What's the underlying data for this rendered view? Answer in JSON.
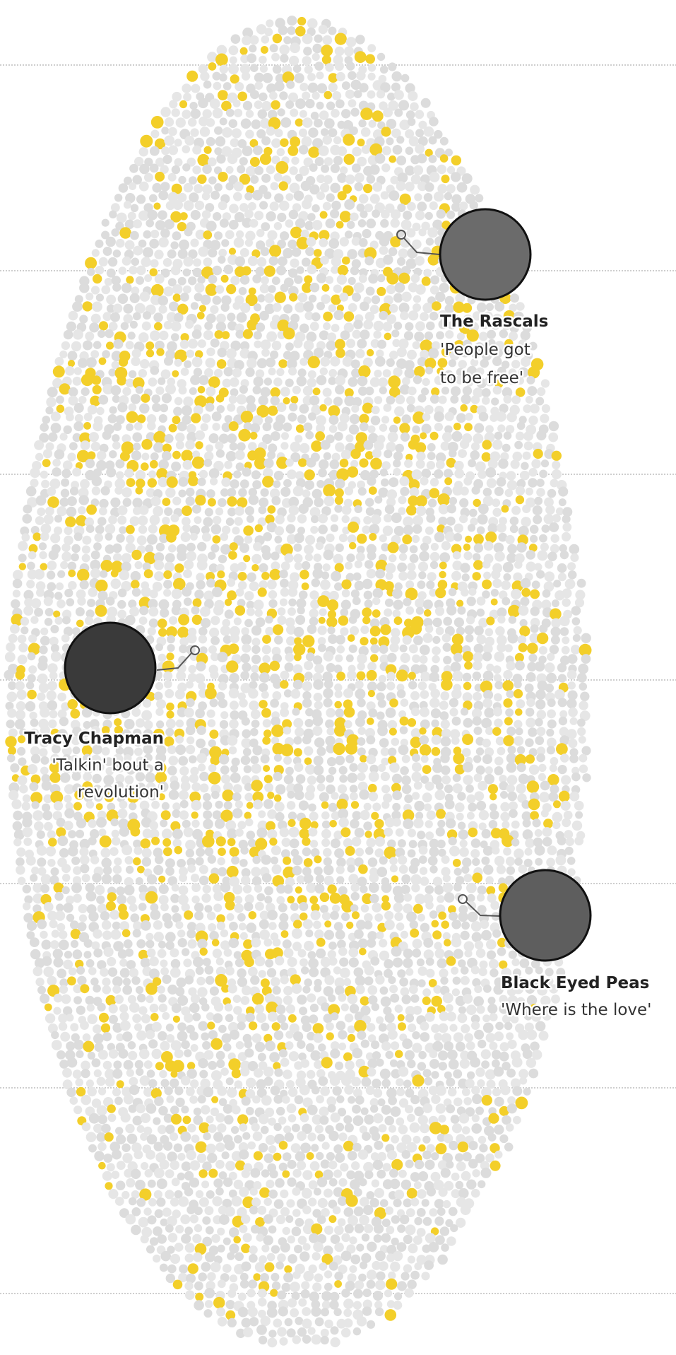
{
  "annotations": [
    {
      "name": "The Rascals",
      "quote_lines": [
        "'People got",
        "to be free'"
      ]
    },
    {
      "name": "Tracy Chapman",
      "quote_lines": [
        "'Talkin' bout a",
        "revolution'"
      ]
    },
    {
      "name": "Black Eyed Peas",
      "quote_lines": [
        "'Where is the love'"
      ]
    }
  ]
}
